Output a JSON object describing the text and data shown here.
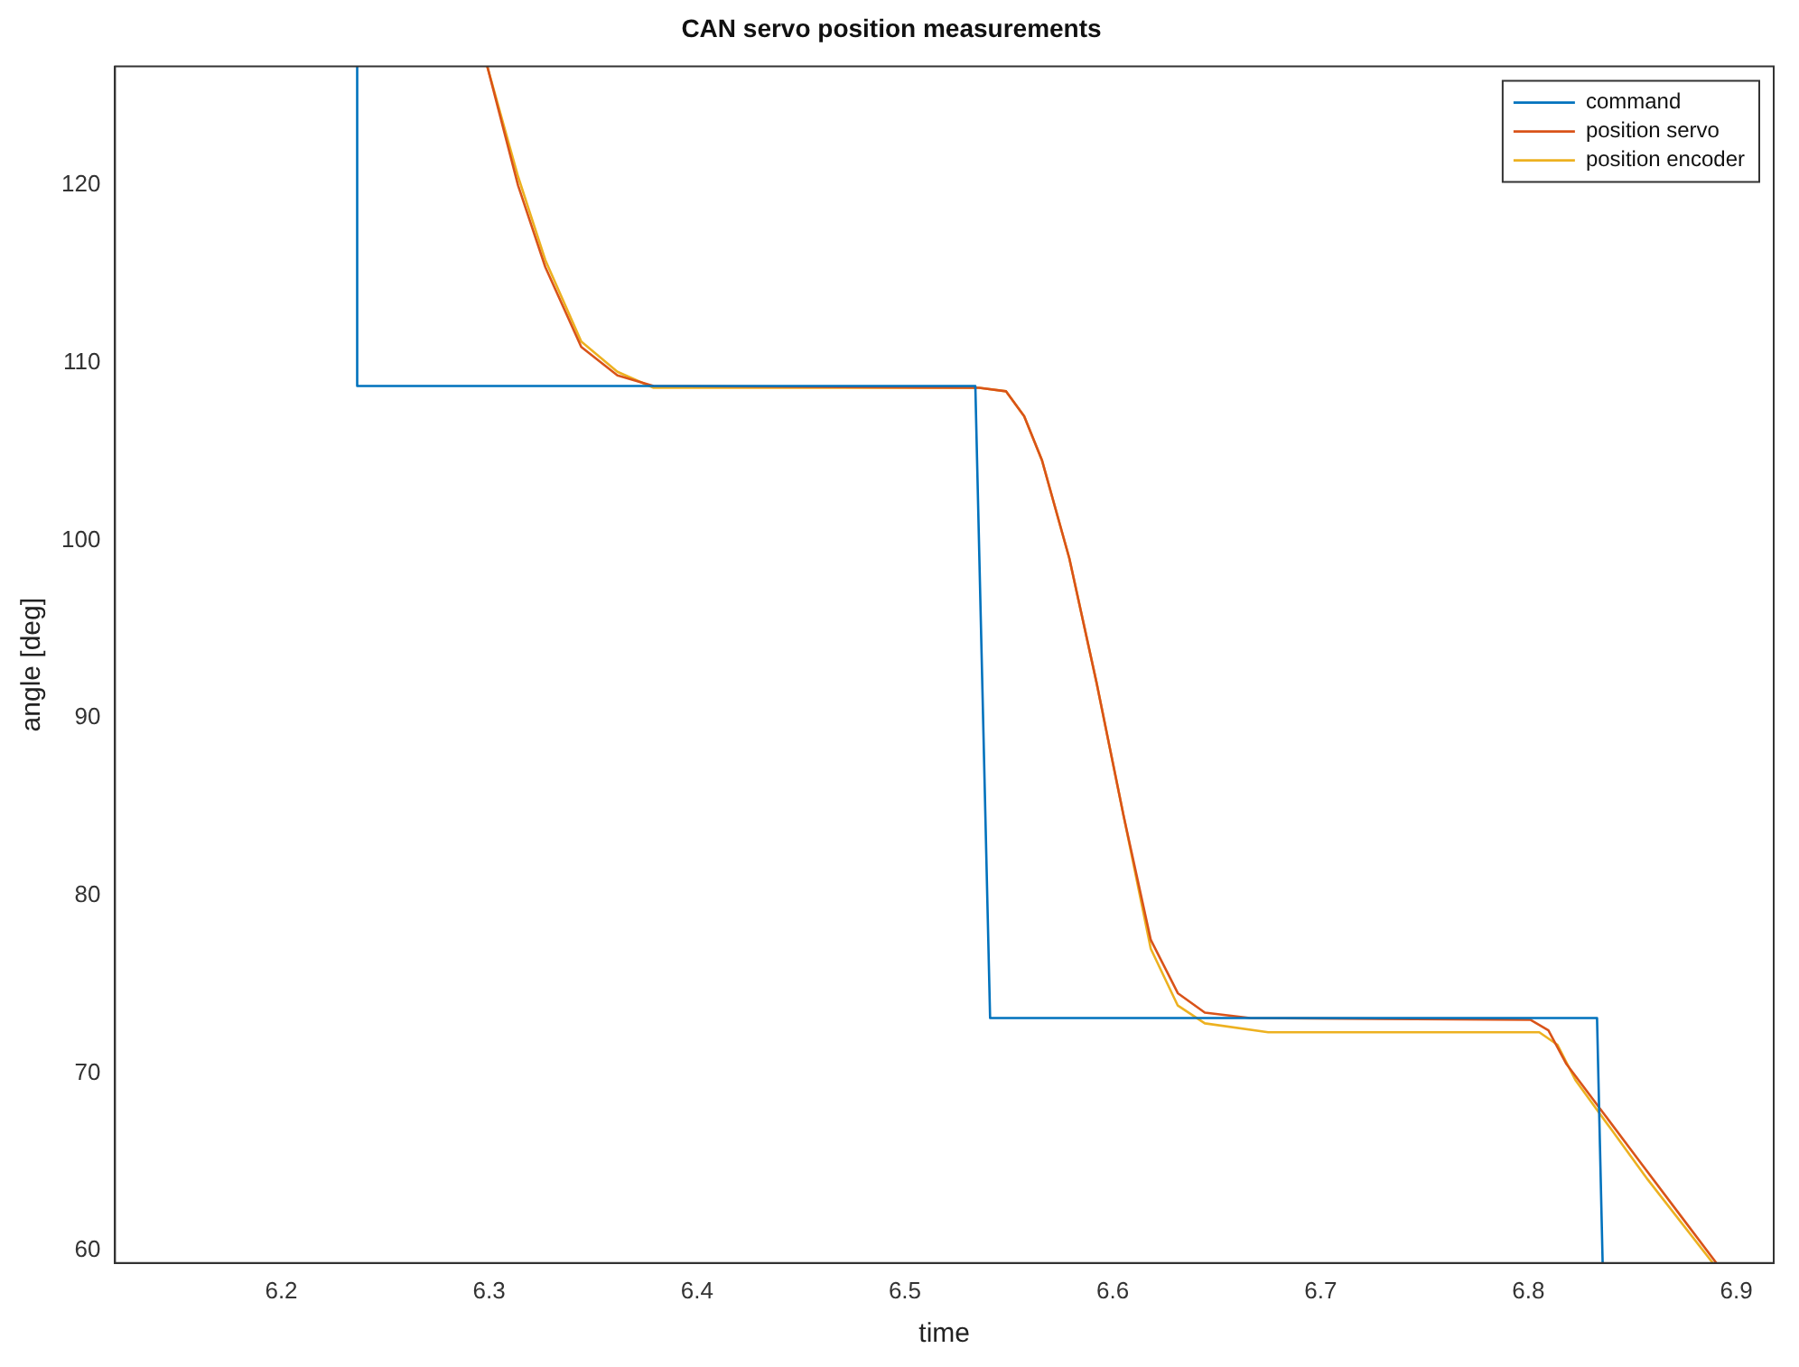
{
  "chart_data": {
    "type": "line",
    "title": "CAN servo position measurements",
    "xlabel": "time",
    "ylabel": "angle [deg]",
    "xlim": [
      6.12,
      6.918
    ],
    "ylim": [
      59.3,
      126.7
    ],
    "xticks": [
      6.2,
      6.3,
      6.4,
      6.5,
      6.6,
      6.7,
      6.8,
      6.9
    ],
    "yticks": [
      60,
      70,
      80,
      90,
      100,
      110,
      120
    ],
    "grid": false,
    "legend": "top right",
    "marker": "none",
    "line_style": "solid",
    "series": [
      {
        "name": "command",
        "color": "#0072bd",
        "x": [
          6.2365,
          6.2365,
          6.2409,
          6.5339,
          6.541,
          6.833,
          6.8357
        ],
        "values": [
          126.7,
          108.7,
          108.7,
          108.7,
          73.1,
          73.1,
          59.3
        ]
      },
      {
        "name": "position servo",
        "color": "#d95319",
        "x": [
          6.2991,
          6.3139,
          6.327,
          6.3443,
          6.3617,
          6.3791,
          6.5357,
          6.5487,
          6.5574,
          6.566,
          6.5791,
          6.5922,
          6.6052,
          6.6183,
          6.6313,
          6.6443,
          6.6661,
          6.8009,
          6.8096,
          6.8183,
          6.8357,
          6.853,
          6.8704,
          6.8904
        ],
        "values": [
          126.7,
          120,
          115.4,
          110.9,
          109.3,
          108.7,
          108.6,
          108.4,
          107,
          104.5,
          99,
          92,
          84.5,
          77.5,
          74.5,
          73.4,
          73.1,
          73,
          72.4,
          70.5,
          67.8,
          65.1,
          62.4,
          59.3
        ]
      },
      {
        "name": "position encoder",
        "color": "#edb120",
        "x": [
          6.2991,
          6.3139,
          6.327,
          6.3443,
          6.3617,
          6.3791,
          6.5357,
          6.5487,
          6.5574,
          6.566,
          6.5791,
          6.5922,
          6.6052,
          6.6183,
          6.6313,
          6.6443,
          6.6748,
          6.8052,
          6.8139,
          6.8226,
          6.84,
          6.8574,
          6.8887
        ],
        "values": [
          126.7,
          120.5,
          115.8,
          111.2,
          109.5,
          108.6,
          108.6,
          108.4,
          107,
          104.5,
          99,
          92,
          84.5,
          77,
          73.8,
          72.8,
          72.3,
          72.3,
          71.6,
          69.6,
          66.8,
          64,
          59.3
        ]
      }
    ]
  }
}
